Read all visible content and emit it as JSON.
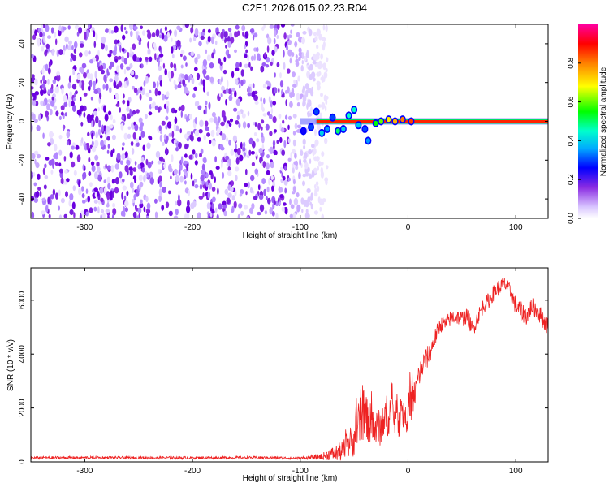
{
  "title": "C2E1.2026.015.02.23.R04",
  "chart_data": [
    {
      "type": "heatmap",
      "xlabel": "Height of straight line (km)",
      "ylabel": "Frequency (Hz)",
      "xlim": [
        -350,
        130
      ],
      "ylim": [
        -50,
        50
      ],
      "xticks": [
        -300,
        -200,
        -100,
        0,
        100
      ],
      "yticks": [
        40,
        20,
        0,
        -20,
        -40
      ],
      "colorbar": {
        "label": "Normalized spectral amplitude",
        "range": [
          0.0,
          1.0
        ],
        "ticks": [
          "0.0",
          "0.2",
          "0.4",
          "0.6",
          "0.8"
        ],
        "colors": [
          "#ffffff",
          "#c8a8ff",
          "#8a2be2",
          "#0000ff",
          "#00ffff",
          "#00ff00",
          "#ffff00",
          "#ff8000",
          "#ff0000",
          "#ff00ff"
        ]
      },
      "noise_region_x": [
        -350,
        -75
      ],
      "signal_line": {
        "x_start": -100,
        "x_end": 130,
        "frequency": 0,
        "amplitude": 1.0
      },
      "transition_blobs": [
        {
          "x": -97,
          "y": -5,
          "v": 0.25
        },
        {
          "x": -90,
          "y": -3,
          "v": 0.3
        },
        {
          "x": -85,
          "y": 5,
          "v": 0.3
        },
        {
          "x": -80,
          "y": -6,
          "v": 0.4
        },
        {
          "x": -75,
          "y": -4,
          "v": 0.35
        },
        {
          "x": -70,
          "y": 2,
          "v": 0.3
        },
        {
          "x": -65,
          "y": -5,
          "v": 0.5
        },
        {
          "x": -60,
          "y": -4,
          "v": 0.4
        },
        {
          "x": -55,
          "y": 3,
          "v": 0.45
        },
        {
          "x": -50,
          "y": 6,
          "v": 0.45
        },
        {
          "x": -46,
          "y": -2,
          "v": 0.4
        },
        {
          "x": -40,
          "y": -4,
          "v": 0.3
        },
        {
          "x": -37,
          "y": -10,
          "v": 0.35
        },
        {
          "x": -30,
          "y": -1,
          "v": 0.55
        },
        {
          "x": -25,
          "y": 0,
          "v": 0.6
        },
        {
          "x": -18,
          "y": 1,
          "v": 0.7
        },
        {
          "x": -12,
          "y": 0,
          "v": 0.75
        },
        {
          "x": -5,
          "y": 1,
          "v": 0.8
        },
        {
          "x": 3,
          "y": 0,
          "v": 0.85
        }
      ]
    },
    {
      "type": "line",
      "xlabel": "Height of straight line (km)",
      "ylabel": "SNR (10 * v/v)",
      "xlim": [
        -350,
        130
      ],
      "ylim": [
        0,
        7200
      ],
      "xticks": [
        -300,
        -200,
        -100,
        0,
        100
      ],
      "yticks": [
        0,
        2000,
        4000,
        6000
      ],
      "series": [
        {
          "color": "#ee2222",
          "x": [
            -350,
            -300,
            -250,
            -200,
            -150,
            -100,
            -80,
            -60,
            -50,
            -45,
            -40,
            -35,
            -30,
            -25,
            -20,
            -15,
            -10,
            -5,
            0,
            5,
            10,
            15,
            20,
            25,
            30,
            35,
            40,
            45,
            50,
            55,
            60,
            65,
            70,
            75,
            80,
            85,
            90,
            95,
            100,
            105,
            110,
            115,
            120,
            125,
            130
          ],
          "y": [
            150,
            160,
            155,
            150,
            160,
            140,
            200,
            400,
            900,
            1500,
            1700,
            1400,
            1200,
            1300,
            1700,
            1900,
            1500,
            1800,
            2000,
            2300,
            3200,
            3700,
            4000,
            4600,
            5100,
            5100,
            5350,
            5400,
            5300,
            5400,
            4900,
            5400,
            5800,
            6000,
            6300,
            6500,
            6600,
            6300,
            5800,
            5600,
            5400,
            5800,
            5600,
            5300,
            5000
          ],
          "noise_amplitude": [
            50,
            50,
            50,
            50,
            50,
            50,
            120,
            400,
            700,
            900,
            800,
            800,
            700,
            700,
            800,
            800,
            700,
            700,
            900,
            600,
            500,
            450,
            400,
            350,
            300,
            300,
            300,
            300,
            300,
            300,
            300,
            300,
            300,
            300,
            300,
            300,
            300,
            300,
            350,
            350,
            350,
            350,
            350,
            350,
            350
          ]
        }
      ]
    }
  ]
}
